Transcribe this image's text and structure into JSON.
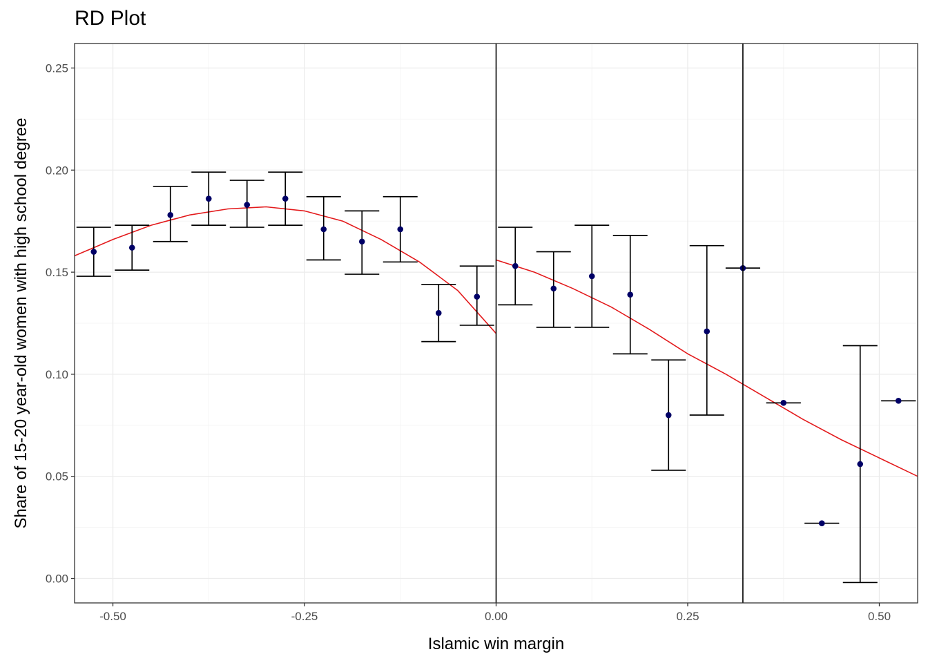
{
  "chart_data": {
    "type": "scatter",
    "title": "RD Plot",
    "xlabel": "Islamic win margin",
    "ylabel": "Share of 15-20 year-old women with high school degree",
    "xlim": [
      -0.55,
      0.55
    ],
    "ylim": [
      -0.012,
      0.262
    ],
    "x_ticks": [
      -0.5,
      -0.25,
      0.0,
      0.25,
      0.5
    ],
    "x_tick_labels": [
      "-0.50",
      "-0.25",
      "0.00",
      "0.25",
      "0.50"
    ],
    "y_ticks": [
      0.0,
      0.05,
      0.1,
      0.15,
      0.2,
      0.25
    ],
    "y_tick_labels": [
      "0.00",
      "0.05",
      "0.10",
      "0.15",
      "0.20",
      "0.25"
    ],
    "grid": true,
    "vlines": [
      0.0,
      0.322
    ],
    "points": [
      {
        "x": -0.525,
        "y": 0.16,
        "lo": 0.148,
        "hi": 0.172
      },
      {
        "x": -0.475,
        "y": 0.162,
        "lo": 0.151,
        "hi": 0.173
      },
      {
        "x": -0.425,
        "y": 0.178,
        "lo": 0.165,
        "hi": 0.192
      },
      {
        "x": -0.375,
        "y": 0.186,
        "lo": 0.173,
        "hi": 0.199
      },
      {
        "x": -0.325,
        "y": 0.183,
        "lo": 0.172,
        "hi": 0.195
      },
      {
        "x": -0.275,
        "y": 0.186,
        "lo": 0.173,
        "hi": 0.199
      },
      {
        "x": -0.225,
        "y": 0.171,
        "lo": 0.156,
        "hi": 0.187
      },
      {
        "x": -0.175,
        "y": 0.165,
        "lo": 0.149,
        "hi": 0.18
      },
      {
        "x": -0.125,
        "y": 0.171,
        "lo": 0.155,
        "hi": 0.187
      },
      {
        "x": -0.075,
        "y": 0.13,
        "lo": 0.116,
        "hi": 0.144
      },
      {
        "x": -0.025,
        "y": 0.138,
        "lo": 0.124,
        "hi": 0.153
      },
      {
        "x": 0.025,
        "y": 0.153,
        "lo": 0.134,
        "hi": 0.172
      },
      {
        "x": 0.075,
        "y": 0.142,
        "lo": 0.123,
        "hi": 0.16
      },
      {
        "x": 0.125,
        "y": 0.148,
        "lo": 0.123,
        "hi": 0.173
      },
      {
        "x": 0.175,
        "y": 0.139,
        "lo": 0.11,
        "hi": 0.168
      },
      {
        "x": 0.225,
        "y": 0.08,
        "lo": 0.053,
        "hi": 0.107
      },
      {
        "x": 0.275,
        "y": 0.121,
        "lo": 0.08,
        "hi": 0.163
      },
      {
        "x": 0.322,
        "y": 0.152,
        "lo": 0.152,
        "hi": 0.152
      },
      {
        "x": 0.375,
        "y": 0.086,
        "lo": 0.086,
        "hi": 0.086
      },
      {
        "x": 0.425,
        "y": 0.027,
        "lo": 0.027,
        "hi": 0.027
      },
      {
        "x": 0.475,
        "y": 0.056,
        "lo": -0.002,
        "hi": 0.114
      },
      {
        "x": 0.525,
        "y": 0.087,
        "lo": 0.087,
        "hi": 0.087
      }
    ],
    "fit_left": {
      "x": [
        -0.55,
        -0.5,
        -0.45,
        -0.4,
        -0.35,
        -0.3,
        -0.25,
        -0.2,
        -0.15,
        -0.1,
        -0.05,
        0.0
      ],
      "y": [
        0.158,
        0.166,
        0.173,
        0.178,
        0.181,
        0.182,
        0.18,
        0.175,
        0.166,
        0.155,
        0.141,
        0.12
      ]
    },
    "fit_right": {
      "x": [
        0.0,
        0.05,
        0.1,
        0.15,
        0.2,
        0.25,
        0.3,
        0.35,
        0.4,
        0.45,
        0.5,
        0.55
      ],
      "y": [
        0.156,
        0.15,
        0.142,
        0.133,
        0.122,
        0.11,
        0.1,
        0.089,
        0.078,
        0.068,
        0.059,
        0.05
      ]
    },
    "colors": {
      "point": "#000066",
      "fit": "#e31a1c",
      "errorbar": "#000000",
      "vline": "#000000",
      "grid_major": "#ebebeb",
      "grid_minor": "#f5f5f5",
      "panel_border": "#333333"
    }
  }
}
